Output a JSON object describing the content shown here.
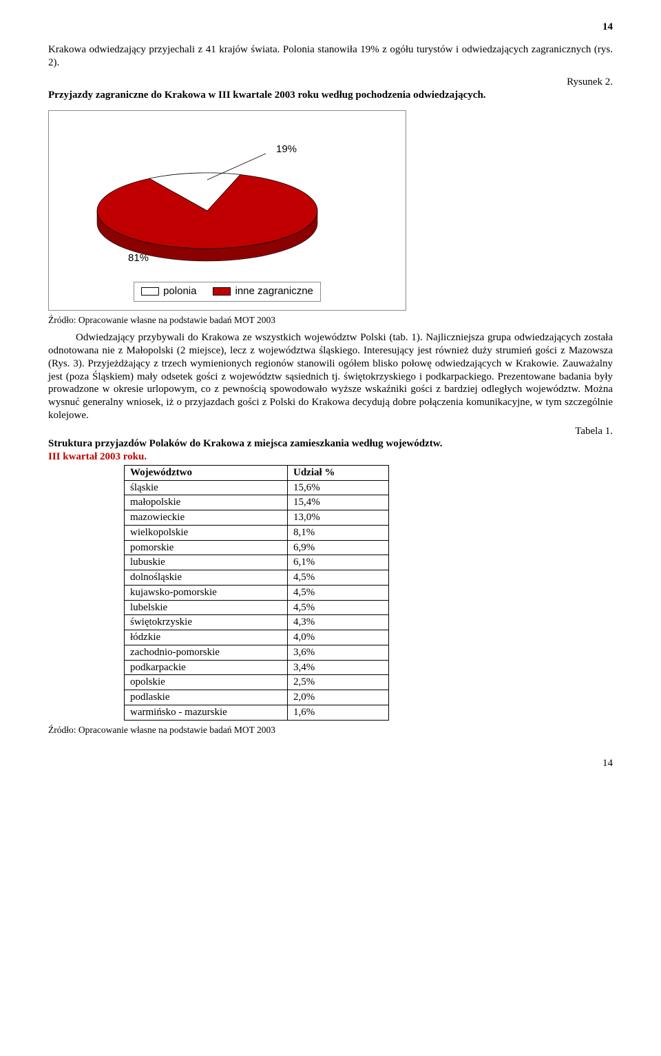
{
  "page_number_top": "14",
  "page_number_bottom": "14",
  "intro_para": "Krakowa odwiedzający przyjechali z 41 krajów świata. Polonia stanowiła 19% z ogółu turystów i odwiedzających zagranicznych (rys. 2).",
  "fig_label": "Rysunek 2.",
  "fig_title": "Przyjazdy zagraniczne do Krakowa w III kwartale 2003 roku według pochodzenia odwiedzających.",
  "chart": {
    "type": "pie-3d",
    "slices": [
      {
        "label": "81%",
        "value": 81,
        "color": "#c00000",
        "side_color": "#8b0000"
      },
      {
        "label": "19%",
        "value": 19,
        "color": "#ffffff",
        "side_color": "#bfbfbf"
      }
    ],
    "background": "#ffffff",
    "border_color": "#8a8a8a",
    "label_fontsize": 15,
    "label_family": "Arial"
  },
  "legend": [
    {
      "label": "polonia",
      "color": "#ffffff",
      "border": "#000000"
    },
    {
      "label": "inne zagraniczne",
      "color": "#c00000",
      "border": "#000000"
    }
  ],
  "source_line": "Źródło: Opracowanie własne na podstawie badań MOT 2003",
  "body_para": "Odwiedzający przybywali do Krakowa ze wszystkich województw Polski (tab. 1). Najliczniejsza grupa odwiedzających została odnotowana nie z Małopolski (2 miejsce), lecz z województwa śląskiego. Interesujący jest również duży strumień gości z Mazowsza (Rys. 3). Przyjeżdżający z trzech wymienionych regionów stanowili ogółem blisko połowę odwiedzających w Krakowie. Zauważalny jest (poza Śląskiem) mały odsetek gości z województw sąsiednich tj. świętokrzyskiego i podkarpackiego. Prezentowane badania były prowadzone w okresie urlopowym, co z pewnością spowodowało wyższe wskaźniki gości z bardziej odległych województw. Można wysnuć generalny wniosek, iż o przyjazdach gości z Polski do Krakowa decydują dobre połączenia komunikacyjne, w tym szczególnie kolejowe.",
  "table_label": "Tabela 1.",
  "table_title": "Struktura przyjazdów Polaków do Krakowa z miejsca zamieszkania według województw.",
  "table_subtitle": "III kwartał 2003 roku.",
  "table": {
    "columns": [
      "Województwo",
      "Udział %"
    ],
    "rows": [
      [
        "śląskie",
        "15,6%"
      ],
      [
        "małopolskie",
        "15,4%"
      ],
      [
        "mazowieckie",
        "13,0%"
      ],
      [
        "wielkopolskie",
        "8,1%"
      ],
      [
        "pomorskie",
        "6,9%"
      ],
      [
        "lubuskie",
        "6,1%"
      ],
      [
        "dolnośląskie",
        "4,5%"
      ],
      [
        "kujawsko-pomorskie",
        "4,5%"
      ],
      [
        "lubelskie",
        "4,5%"
      ],
      [
        "świętokrzyskie",
        "4,3%"
      ],
      [
        "łódzkie",
        "4,0%"
      ],
      [
        "zachodnio-pomorskie",
        "3,6%"
      ],
      [
        "podkarpackie",
        "3,4%"
      ],
      [
        "opolskie",
        "2,5%"
      ],
      [
        "podlaskie",
        "2,0%"
      ],
      [
        "warmińsko - mazurskie",
        "1,6%"
      ]
    ]
  },
  "source_line2": "Źródło: Opracowanie własne na podstawie badań MOT 2003"
}
